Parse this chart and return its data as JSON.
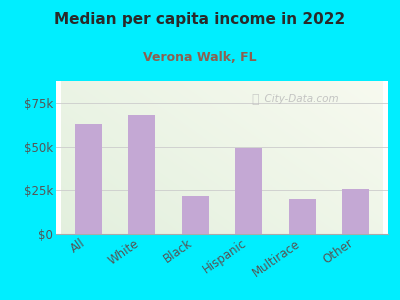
{
  "title": "Median per capita income in 2022",
  "subtitle": "Verona Walk, FL",
  "categories": [
    "All",
    "White",
    "Black",
    "Hispanic",
    "Multirace",
    "Other"
  ],
  "values": [
    63000,
    68000,
    22000,
    49000,
    20000,
    26000
  ],
  "bar_color": "#c4a8d4",
  "background_outer": "#00eeff",
  "title_color": "#2a2a2a",
  "subtitle_color": "#8B6050",
  "tick_label_color": "#555555",
  "watermark_text": "  City-Data.com",
  "ylim": [
    0,
    87500
  ],
  "yticks": [
    0,
    25000,
    50000,
    75000
  ],
  "ytick_labels": [
    "$0",
    "$25k",
    "$50k",
    "$75k"
  ]
}
